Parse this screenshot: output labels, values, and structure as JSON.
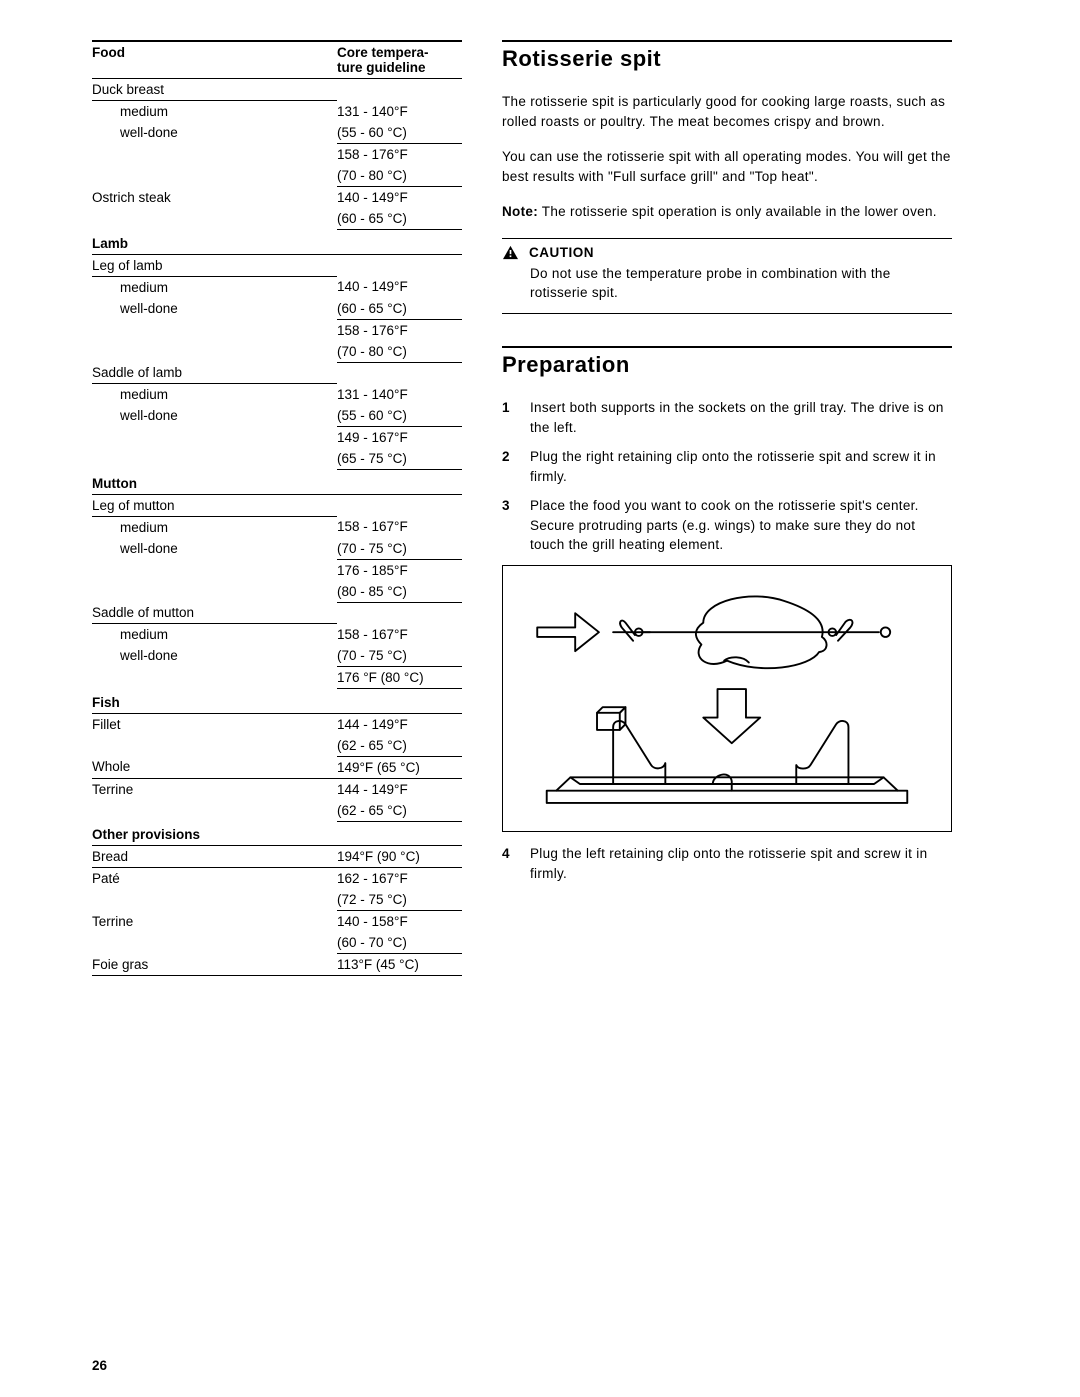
{
  "page_number": "26",
  "table": {
    "header_food": "Food",
    "header_temp_line1": "Core tempera-",
    "header_temp_line2": "ture guideline",
    "rows": [
      {
        "cells": [
          "Duck breast",
          ""
        ],
        "cls": [
          "line",
          ""
        ]
      },
      {
        "cells": [
          "medium",
          "131 - 140°F"
        ],
        "cls": [
          "indent",
          ""
        ]
      },
      {
        "cells": [
          "well-done",
          "(55 - 60 °C)"
        ],
        "cls": [
          "indent",
          "line"
        ]
      },
      {
        "cells": [
          "",
          "158 - 176°F"
        ],
        "cls": [
          "",
          ""
        ]
      },
      {
        "cells": [
          "",
          "(70 - 80 °C)"
        ],
        "cls": [
          "",
          "line"
        ]
      },
      {
        "cells": [
          "Ostrich steak",
          "140 - 149°F"
        ],
        "cls": [
          "",
          ""
        ]
      },
      {
        "cells": [
          "",
          "(60 - 65 °C)"
        ],
        "cls": [
          "",
          "line"
        ]
      },
      {
        "cells": [
          "Lamb",
          ""
        ],
        "cls": [
          "cat",
          "cat"
        ]
      },
      {
        "cells": [
          "Leg of lamb",
          ""
        ],
        "cls": [
          "line",
          ""
        ]
      },
      {
        "cells": [
          "medium",
          "140 - 149°F"
        ],
        "cls": [
          "indent",
          ""
        ]
      },
      {
        "cells": [
          "well-done",
          "(60 - 65 °C)"
        ],
        "cls": [
          "indent",
          "line"
        ]
      },
      {
        "cells": [
          "",
          "158 - 176°F"
        ],
        "cls": [
          "",
          ""
        ]
      },
      {
        "cells": [
          "",
          "(70 - 80 °C)"
        ],
        "cls": [
          "",
          "line"
        ]
      },
      {
        "cells": [
          "Saddle of lamb",
          ""
        ],
        "cls": [
          "line",
          ""
        ]
      },
      {
        "cells": [
          "medium",
          "131 - 140°F"
        ],
        "cls": [
          "indent",
          ""
        ]
      },
      {
        "cells": [
          "well-done",
          "(55 - 60 °C)"
        ],
        "cls": [
          "indent",
          "line"
        ]
      },
      {
        "cells": [
          "",
          "149 - 167°F"
        ],
        "cls": [
          "",
          ""
        ]
      },
      {
        "cells": [
          "",
          "(65 - 75 °C)"
        ],
        "cls": [
          "",
          "line"
        ]
      },
      {
        "cells": [
          "Mutton",
          ""
        ],
        "cls": [
          "cat",
          "cat"
        ]
      },
      {
        "cells": [
          "Leg of mutton",
          ""
        ],
        "cls": [
          "line",
          ""
        ]
      },
      {
        "cells": [
          "medium",
          "158 - 167°F"
        ],
        "cls": [
          "indent",
          ""
        ]
      },
      {
        "cells": [
          "well-done",
          "(70 - 75 °C)"
        ],
        "cls": [
          "indent",
          "line"
        ]
      },
      {
        "cells": [
          "",
          "176 - 185°F"
        ],
        "cls": [
          "",
          ""
        ]
      },
      {
        "cells": [
          "",
          "(80 - 85 °C)"
        ],
        "cls": [
          "",
          "line"
        ]
      },
      {
        "cells": [
          "Saddle of mutton",
          ""
        ],
        "cls": [
          "line",
          ""
        ]
      },
      {
        "cells": [
          "medium",
          "158 - 167°F"
        ],
        "cls": [
          "indent",
          ""
        ]
      },
      {
        "cells": [
          "well-done",
          "(70 - 75 °C)"
        ],
        "cls": [
          "indent",
          "line"
        ]
      },
      {
        "cells": [
          "",
          "176 °F (80 °C)"
        ],
        "cls": [
          "",
          "line"
        ]
      },
      {
        "cells": [
          "Fish",
          ""
        ],
        "cls": [
          "cat",
          "cat"
        ]
      },
      {
        "cells": [
          "Fillet",
          "144 - 149°F"
        ],
        "cls": [
          "",
          ""
        ]
      },
      {
        "cells": [
          "",
          "(62 - 65 °C)"
        ],
        "cls": [
          "",
          "line"
        ]
      },
      {
        "cells": [
          "Whole",
          "149°F (65 °C)"
        ],
        "cls": [
          "line",
          "line"
        ]
      },
      {
        "cells": [
          "Terrine",
          "144 - 149°F"
        ],
        "cls": [
          "",
          ""
        ]
      },
      {
        "cells": [
          "",
          "(62 - 65 °C)"
        ],
        "cls": [
          "",
          "line"
        ]
      },
      {
        "cells": [
          "Other provisions",
          ""
        ],
        "cls": [
          "cat",
          "cat"
        ]
      },
      {
        "cells": [
          "Bread",
          "194°F (90 °C)"
        ],
        "cls": [
          "line",
          "line"
        ]
      },
      {
        "cells": [
          "Paté",
          "162 - 167°F"
        ],
        "cls": [
          "",
          ""
        ]
      },
      {
        "cells": [
          "",
          "(72 - 75 °C)"
        ],
        "cls": [
          "",
          "line"
        ]
      },
      {
        "cells": [
          "Terrine",
          "140 - 158°F"
        ],
        "cls": [
          "",
          ""
        ]
      },
      {
        "cells": [
          "",
          "(60 - 70 °C)"
        ],
        "cls": [
          "",
          "line"
        ]
      },
      {
        "cells": [
          "Foie gras",
          "113°F (45 °C)"
        ],
        "cls": [
          "line",
          "line"
        ]
      }
    ]
  },
  "right": {
    "h_rotisserie": "Rotisserie spit",
    "p1": "The rotisserie spit is particularly good for cooking large roasts, such as rolled roasts or poultry. The meat becomes crispy and brown.",
    "p2": "You can use the rotisserie spit with all operating modes. You will get the best results with \"Full surface grill\" and \"Top heat\".",
    "note_label": "Note:",
    "note_text": " The rotisserie spit operation is only available in the lower oven.",
    "caution_label": "CAUTION",
    "caution_text": "Do not use the temperature probe in combination with the rotisserie spit.",
    "h_prep": "Preparation",
    "steps": [
      {
        "n": "1",
        "t": "Insert both supports in the sockets on the grill tray. The drive is on the left."
      },
      {
        "n": "2",
        "t": "Plug the right retaining clip onto the rotisserie spit and screw it in firmly."
      },
      {
        "n": "3",
        "t": "Place the food you want to cook on the rotisserie spit's center. Secure protruding parts (e.g. wings) to make sure they do not touch the grill heating element."
      }
    ],
    "step4": {
      "n": "4",
      "t": "Plug the left retaining clip onto the rotisserie spit and screw it in firmly."
    }
  }
}
